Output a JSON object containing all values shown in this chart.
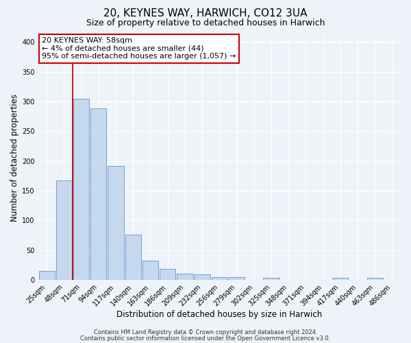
{
  "title": "20, KEYNES WAY, HARWICH, CO12 3UA",
  "subtitle": "Size of property relative to detached houses in Harwich",
  "xlabel": "Distribution of detached houses by size in Harwich",
  "ylabel": "Number of detached properties",
  "bar_labels": [
    "25sqm",
    "48sqm",
    "71sqm",
    "94sqm",
    "117sqm",
    "140sqm",
    "163sqm",
    "186sqm",
    "209sqm",
    "232sqm",
    "256sqm",
    "279sqm",
    "302sqm",
    "325sqm",
    "348sqm",
    "371sqm",
    "394sqm",
    "417sqm",
    "440sqm",
    "463sqm",
    "486sqm"
  ],
  "bar_values": [
    15,
    167,
    305,
    288,
    191,
    76,
    32,
    19,
    10,
    9,
    5,
    5,
    0,
    4,
    0,
    0,
    0,
    3,
    0,
    3,
    0
  ],
  "bar_color": "#c6d8ee",
  "bar_edge_color": "#6a9fd8",
  "bar_edge_width": 0.7,
  "vline_x": 1.5,
  "vline_color": "#cc0000",
  "annotation_line1": "20 KEYNES WAY: 58sqm",
  "annotation_line2": "← 4% of detached houses are smaller (44)",
  "annotation_line3": "95% of semi-detached houses are larger (1,057) →",
  "annotation_box_edge_color": "#cc0000",
  "ylim": [
    0,
    410
  ],
  "yticks": [
    0,
    50,
    100,
    150,
    200,
    250,
    300,
    350,
    400
  ],
  "footer_line1": "Contains HM Land Registry data © Crown copyright and database right 2024.",
  "footer_line2": "Contains public sector information licensed under the Open Government Licence v3.0.",
  "background_color": "#eef2f9",
  "grid_color": "#ffffff",
  "title_fontsize": 11,
  "subtitle_fontsize": 9,
  "axis_label_fontsize": 8.5,
  "tick_fontsize": 7,
  "annotation_fontsize": 8,
  "footer_fontsize": 6
}
